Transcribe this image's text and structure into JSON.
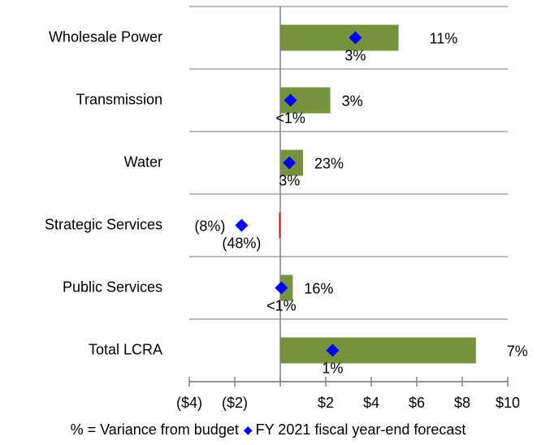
{
  "chart_data": {
    "type": "bar",
    "orientation": "horizontal",
    "categories": [
      "Wholesale Power",
      "Transmission",
      "Water",
      "Strategic Services",
      "Public Services",
      "Total LCRA"
    ],
    "values": [
      5.2,
      2.2,
      1.0,
      -0.05,
      0.55,
      8.6
    ],
    "colors": [
      "#76923c",
      "#76923c",
      "#76923c",
      "#c00000",
      "#76923c",
      "#76923c"
    ],
    "bar_labels": [
      "11%",
      "3%",
      "23%",
      "(8%)",
      "16%",
      "7%"
    ],
    "bar_label_colors": [
      "#76923c",
      "#76923c",
      "#76923c",
      "#c00000",
      "#76923c",
      "#76923c"
    ],
    "series": [
      {
        "name": "FY 2021 fiscal year-end forecast",
        "color": "#0000ff",
        "values": [
          3.3,
          0.45,
          0.4,
          -1.7,
          0.05,
          2.3
        ],
        "labels": [
          "3%",
          "<1%",
          "3%",
          "(48%)",
          "<1%",
          "1%"
        ],
        "label_color": "#3333ff"
      }
    ],
    "note": "% = Variance from budget",
    "xlim": [
      -4,
      10
    ],
    "xticks": [
      {
        "value": -4,
        "label": "($4)"
      },
      {
        "value": -2,
        "label": "($2)"
      },
      {
        "value": 2,
        "label": "$2"
      },
      {
        "value": 4,
        "label": "$4"
      },
      {
        "value": 6,
        "label": "$6"
      },
      {
        "value": 8,
        "label": "$8"
      },
      {
        "value": 10,
        "label": "$10"
      }
    ],
    "grid": true
  }
}
